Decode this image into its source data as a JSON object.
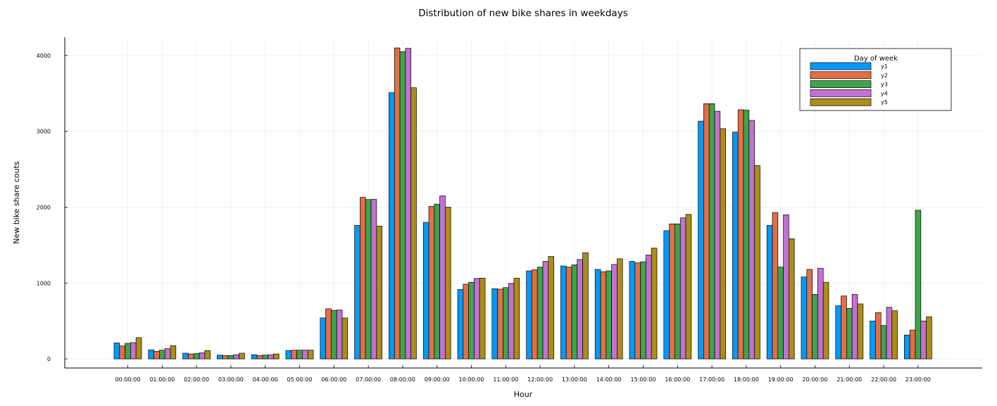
{
  "chart_data": {
    "type": "bar",
    "title": "Distribution of new bike shares in weekdays",
    "xlabel": "Hour",
    "ylabel": "New bike share couts",
    "ylim": [
      -120,
      4240
    ],
    "yticks": [
      0,
      1000,
      2000,
      3000,
      4000
    ],
    "yticklabels": [
      "0",
      "1000",
      "2000",
      "3000",
      "4000"
    ],
    "grid": true,
    "legend": {
      "title": "Day of week",
      "position": "top-right"
    },
    "categories": [
      "00:00:00",
      "01:00:00",
      "02:00:00",
      "03:00:00",
      "04:00:00",
      "05:00:00",
      "06:00:00",
      "07:00:00",
      "08:00:00",
      "09:00:00",
      "10:00:00",
      "11:00:00",
      "12:00:00",
      "13:00:00",
      "14:00:00",
      "15:00:00",
      "16:00:00",
      "17:00:00",
      "18:00:00",
      "19:00:00",
      "20:00:00",
      "21:00:00",
      "22:00:00",
      "23:00:00"
    ],
    "series": [
      {
        "name": "y1",
        "color": "#009af9",
        "values": [
          210,
          120,
          75,
          50,
          55,
          110,
          540,
          1760,
          3510,
          1800,
          915,
          925,
          1160,
          1225,
          1180,
          1285,
          1690,
          3135,
          2990,
          1760,
          1080,
          700,
          500,
          315
        ]
      },
      {
        "name": "y2",
        "color": "#e26f46",
        "values": [
          170,
          100,
          65,
          45,
          45,
          115,
          660,
          2130,
          4100,
          2010,
          985,
          920,
          1175,
          1210,
          1150,
          1265,
          1780,
          3365,
          3285,
          1930,
          1180,
          830,
          610,
          380
        ]
      },
      {
        "name": "y3",
        "color": "#3da44d",
        "values": [
          205,
          115,
          70,
          45,
          50,
          115,
          640,
          2100,
          4050,
          2040,
          1010,
          940,
          1210,
          1240,
          1160,
          1280,
          1780,
          3365,
          3280,
          1210,
          850,
          665,
          440,
          1960
        ]
      },
      {
        "name": "y4",
        "color": "#c271d2",
        "values": [
          215,
          135,
          80,
          55,
          55,
          115,
          645,
          2105,
          4095,
          2150,
          1060,
          995,
          1285,
          1310,
          1245,
          1370,
          1860,
          3265,
          3145,
          1900,
          1195,
          850,
          680,
          500
        ]
      },
      {
        "name": "y5",
        "color": "#ac8d18",
        "values": [
          280,
          175,
          110,
          75,
          65,
          115,
          540,
          1750,
          3575,
          2000,
          1065,
          1065,
          1350,
          1400,
          1320,
          1460,
          1905,
          3035,
          2550,
          1585,
          1010,
          725,
          635,
          555
        ]
      }
    ]
  }
}
